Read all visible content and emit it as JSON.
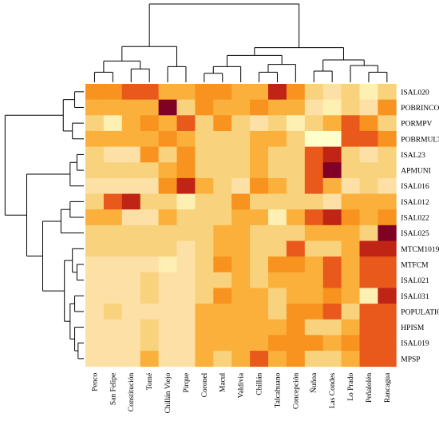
{
  "chart_data": {
    "type": "heatmap",
    "columns": [
      "Penco",
      "San Felipe",
      "Constitución",
      "Tomé",
      "Chillán Viejo",
      "Pirque",
      "Coronel",
      "Macul",
      "Valdivia",
      "Chillán",
      "Talcahuano",
      "Concepción",
      "Ñuñoa",
      "Las Condes",
      "Lo Prado",
      "Peñalolén",
      "Rancagua"
    ],
    "rows": [
      "ISAL020",
      "POBRINCOM",
      "PORMPV",
      "POBRMULT",
      "ISAL23",
      "APMUNI",
      "ISAL016",
      "ISAL012",
      "ISAL022",
      "ISAL025",
      "MTCM1019",
      "MTFCM",
      "ISAL021",
      "ISAL031",
      "POPULATION",
      "HPISM",
      "ISAL019",
      "MPSP"
    ],
    "values": [
      [
        5,
        5,
        6,
        6,
        4,
        4,
        5,
        5,
        4,
        4,
        7,
        5,
        3,
        2,
        3,
        1,
        3
      ],
      [
        4,
        4,
        4,
        4,
        8,
        3,
        5,
        4,
        4,
        5,
        4,
        4,
        2,
        1,
        3,
        2,
        5
      ],
      [
        3,
        1,
        4,
        5,
        4,
        6,
        3,
        5,
        3,
        2,
        3,
        1,
        3,
        4,
        6,
        5,
        3
      ],
      [
        4,
        4,
        4,
        4,
        5,
        4,
        3,
        3,
        3,
        4,
        4,
        3,
        0,
        0,
        6,
        6,
        5
      ],
      [
        3,
        2,
        2,
        5,
        3,
        5,
        3,
        3,
        3,
        4,
        3,
        3,
        6,
        7,
        3,
        2,
        3
      ],
      [
        3,
        3,
        3,
        3,
        4,
        5,
        3,
        3,
        3,
        4,
        3,
        3,
        6,
        8,
        3,
        3,
        3
      ],
      [
        2,
        2,
        2,
        2,
        5,
        7,
        4,
        3,
        2,
        5,
        4,
        3,
        6,
        4,
        2,
        3,
        2
      ],
      [
        3,
        6,
        7,
        3,
        3,
        1,
        3,
        3,
        5,
        3,
        3,
        3,
        3,
        2,
        4,
        4,
        4
      ],
      [
        4,
        4,
        2,
        2,
        4,
        3,
        3,
        3,
        4,
        4,
        1,
        4,
        6,
        7,
        5,
        4,
        5
      ],
      [
        3,
        3,
        3,
        3,
        3,
        3,
        3,
        4,
        4,
        3,
        3,
        3,
        4,
        4,
        4,
        3,
        8
      ],
      [
        3,
        3,
        3,
        3,
        3,
        2,
        3,
        4,
        4,
        3,
        3,
        6,
        3,
        3,
        4,
        7,
        7
      ],
      [
        2,
        2,
        2,
        2,
        1,
        2,
        3,
        5,
        4,
        3,
        5,
        5,
        4,
        6,
        4,
        6,
        6
      ],
      [
        2,
        2,
        2,
        3,
        2,
        2,
        3,
        3,
        4,
        3,
        4,
        4,
        4,
        6,
        4,
        6,
        6
      ],
      [
        2,
        2,
        2,
        3,
        2,
        2,
        3,
        5,
        4,
        4,
        3,
        4,
        4,
        5,
        4,
        1,
        7
      ],
      [
        2,
        3,
        2,
        2,
        2,
        2,
        4,
        4,
        4,
        4,
        3,
        5,
        5,
        6,
        3,
        6,
        6
      ],
      [
        2,
        2,
        2,
        3,
        2,
        2,
        4,
        4,
        4,
        4,
        4,
        5,
        3,
        3,
        4,
        6,
        6
      ],
      [
        2,
        2,
        2,
        3,
        2,
        2,
        4,
        4,
        4,
        4,
        5,
        5,
        5,
        4,
        5,
        6,
        6
      ],
      [
        2,
        2,
        2,
        4,
        2,
        2,
        4,
        3,
        4,
        6,
        4,
        5,
        3,
        3,
        4,
        6,
        6
      ]
    ],
    "color_scale": [
      "#FFFFCC",
      "#FEF0B2",
      "#FDE0A5",
      "#F9D27D",
      "#FBB03B",
      "#F7931E",
      "#E8591B",
      "#C02415",
      "#800026"
    ],
    "legend": "none",
    "grid": false,
    "row_dendrogram_side": "left",
    "col_dendrogram_side": "top"
  }
}
